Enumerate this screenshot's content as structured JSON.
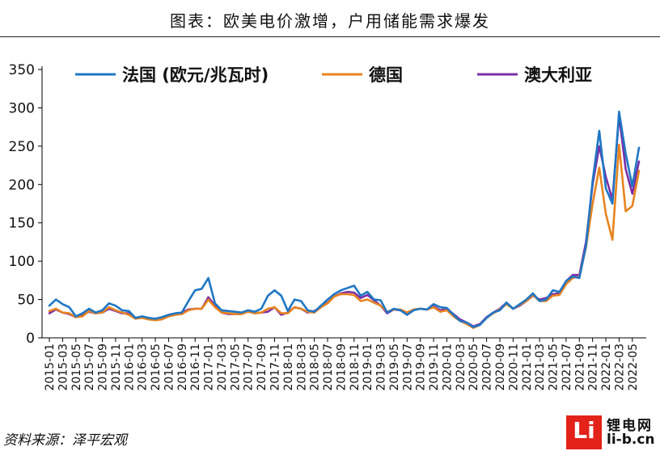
{
  "header": {
    "title": "图表：欧美电价激增，户用储能需求爆发"
  },
  "footer": {
    "source": "资料来源：泽平宏观"
  },
  "logo": {
    "mark": "Li",
    "name": "锂电网",
    "site": "li-b.cn"
  },
  "chart_data": {
    "type": "line",
    "title": "",
    "xlabel": "",
    "ylabel": "",
    "ylim": [
      0,
      350
    ],
    "yticks": [
      0,
      50,
      100,
      150,
      200,
      250,
      300,
      350
    ],
    "grid": false,
    "legend_position": "top",
    "x": [
      "2015-01",
      "2015-02",
      "2015-03",
      "2015-04",
      "2015-05",
      "2015-06",
      "2015-07",
      "2015-08",
      "2015-09",
      "2015-10",
      "2015-11",
      "2015-12",
      "2016-01",
      "2016-02",
      "2016-03",
      "2016-04",
      "2016-05",
      "2016-06",
      "2016-07",
      "2016-08",
      "2016-09",
      "2016-10",
      "2016-11",
      "2016-12",
      "2017-01",
      "2017-02",
      "2017-03",
      "2017-04",
      "2017-05",
      "2017-06",
      "2017-07",
      "2017-08",
      "2017-09",
      "2017-10",
      "2017-11",
      "2017-12",
      "2018-01",
      "2018-02",
      "2018-03",
      "2018-04",
      "2018-05",
      "2018-06",
      "2018-07",
      "2018-08",
      "2018-09",
      "2018-10",
      "2018-11",
      "2018-12",
      "2019-01",
      "2019-02",
      "2019-03",
      "2019-04",
      "2019-05",
      "2019-06",
      "2019-07",
      "2019-08",
      "2019-09",
      "2019-10",
      "2019-11",
      "2019-12",
      "2020-01",
      "2020-02",
      "2020-03",
      "2020-04",
      "2020-05",
      "2020-06",
      "2020-07",
      "2020-08",
      "2020-09",
      "2020-10",
      "2020-11",
      "2020-12",
      "2021-01",
      "2021-02",
      "2021-03",
      "2021-04",
      "2021-05",
      "2021-06",
      "2021-07",
      "2021-08",
      "2021-09",
      "2021-10",
      "2021-11",
      "2021-12",
      "2022-01",
      "2022-02",
      "2022-03",
      "2022-04",
      "2022-05",
      "2022-06"
    ],
    "xticks": [
      "2015-01",
      "2015-03",
      "2015-05",
      "2015-07",
      "2015-09",
      "2015-11",
      "2016-01",
      "2016-03",
      "2016-05",
      "2016-07",
      "2016-09",
      "2016-11",
      "2017-01",
      "2017-03",
      "2017-05",
      "2017-07",
      "2017-09",
      "2017-11",
      "2018-01",
      "2018-03",
      "2018-05",
      "2018-07",
      "2018-09",
      "2018-11",
      "2019-01",
      "2019-03",
      "2019-05",
      "2019-07",
      "2019-09",
      "2019-11",
      "2020-01",
      "2020-03",
      "2020-05",
      "2020-07",
      "2020-09",
      "2020-11",
      "2021-01",
      "2021-03",
      "2021-05",
      "2021-07",
      "2021-09",
      "2021-11",
      "2022-01",
      "2022-03",
      "2022-05"
    ],
    "series": [
      {
        "name": "法国 (欧元/兆瓦时)",
        "color": "#1f77c4",
        "values": [
          42,
          50,
          44,
          40,
          28,
          32,
          38,
          33,
          36,
          45,
          42,
          36,
          35,
          26,
          28,
          26,
          25,
          27,
          30,
          32,
          33,
          48,
          62,
          64,
          78,
          45,
          36,
          35,
          34,
          33,
          36,
          34,
          38,
          55,
          62,
          55,
          35,
          50,
          48,
          36,
          34,
          42,
          50,
          57,
          62,
          65,
          68,
          55,
          60,
          50,
          49,
          33,
          38,
          36,
          30,
          36,
          38,
          37,
          44,
          40,
          39,
          30,
          22,
          20,
          14,
          17,
          26,
          33,
          36,
          46,
          38,
          44,
          50,
          58,
          48,
          50,
          62,
          60,
          74,
          80,
          78,
          120,
          205,
          270,
          195,
          175,
          295,
          240,
          198,
          248
        ]
      },
      {
        "name": "德国",
        "color": "#e8841f",
        "values": [
          35,
          38,
          33,
          32,
          27,
          28,
          35,
          32,
          33,
          40,
          36,
          33,
          30,
          25,
          26,
          24,
          23,
          24,
          28,
          30,
          31,
          36,
          38,
          38,
          50,
          40,
          33,
          32,
          31,
          31,
          34,
          32,
          33,
          38,
          40,
          32,
          32,
          40,
          38,
          34,
          33,
          40,
          45,
          54,
          57,
          57,
          56,
          48,
          50,
          46,
          42,
          34,
          37,
          37,
          33,
          37,
          38,
          37,
          40,
          34,
          36,
          28,
          22,
          18,
          13,
          17,
          26,
          32,
          37,
          44,
          38,
          43,
          48,
          56,
          48,
          48,
          55,
          56,
          70,
          78,
          80,
          118,
          175,
          222,
          162,
          128,
          252,
          165,
          172,
          218
        ]
      },
      {
        "name": "澳大利亚",
        "color": "#7b2fa8",
        "values": [
          32,
          37,
          33,
          31,
          27,
          30,
          34,
          32,
          33,
          38,
          35,
          32,
          32,
          25,
          27,
          25,
          24,
          25,
          28,
          30,
          33,
          37,
          38,
          38,
          53,
          42,
          33,
          31,
          31,
          31,
          35,
          32,
          33,
          34,
          40,
          30,
          33,
          40,
          38,
          33,
          35,
          40,
          46,
          54,
          58,
          60,
          59,
          52,
          56,
          49,
          42,
          32,
          37,
          36,
          33,
          37,
          38,
          37,
          41,
          36,
          38,
          31,
          24,
          20,
          15,
          18,
          27,
          33,
          38,
          46,
          38,
          42,
          48,
          55,
          50,
          52,
          57,
          58,
          74,
          82,
          82,
          125,
          200,
          250,
          210,
          180,
          290,
          220,
          188,
          230
        ]
      }
    ]
  }
}
